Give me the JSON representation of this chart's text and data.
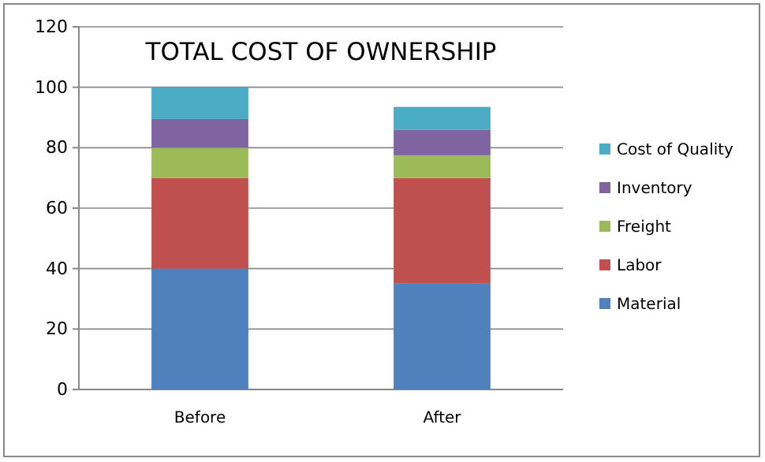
{
  "chart_data": {
    "type": "bar",
    "title": "TOTAL COST OF OWNERSHIP",
    "categories": [
      "Before",
      "After"
    ],
    "stacked": true,
    "ylim": [
      0,
      120
    ],
    "yticks": [
      0,
      20,
      40,
      60,
      80,
      100,
      120
    ],
    "grid": "y",
    "legend": "right",
    "series": [
      {
        "name": "Material",
        "color": "#4f81bd",
        "values": [
          40,
          35
        ]
      },
      {
        "name": "Labor",
        "color": "#c0504d",
        "values": [
          30,
          35
        ]
      },
      {
        "name": "Freight",
        "color": "#9bbb59",
        "values": [
          10,
          7.5
        ]
      },
      {
        "name": "Inventory",
        "color": "#8064a2",
        "values": [
          9.5,
          8.5
        ]
      },
      {
        "name": "Cost of Quality",
        "color": "#4bacc6",
        "values": [
          10.5,
          7.5
        ]
      }
    ]
  }
}
